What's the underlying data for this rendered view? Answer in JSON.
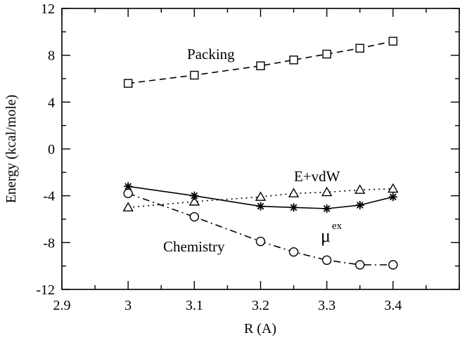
{
  "chart_data": {
    "type": "line",
    "title": "",
    "xlabel": "R (A)",
    "ylabel": "Energy (kcal/mole)",
    "xlim": [
      2.9,
      3.5
    ],
    "ylim": [
      -12,
      12
    ],
    "x_major_ticks": [
      2.9,
      3.0,
      3.1,
      3.2,
      3.3,
      3.4
    ],
    "x_tick_labels": [
      "2.9",
      "3",
      "3.1",
      "3.2",
      "3.3",
      "3.4"
    ],
    "y_major_ticks": [
      -12,
      -8,
      -4,
      0,
      4,
      8,
      12
    ],
    "y_tick_labels": [
      "-12",
      "-8",
      "-4",
      "0",
      "4",
      "8",
      "12"
    ],
    "grid": false,
    "series": [
      {
        "name": "Packing",
        "label": "Packing",
        "marker": "square",
        "line_style": "dashed",
        "x": [
          3.0,
          3.1,
          3.2,
          3.25,
          3.3,
          3.35,
          3.4
        ],
        "y": [
          5.6,
          6.3,
          7.1,
          7.6,
          8.1,
          8.6,
          9.2
        ]
      },
      {
        "name": "E+vdW",
        "label": "E+vdW",
        "marker": "triangle",
        "line_style": "dotted",
        "x": [
          3.0,
          3.1,
          3.2,
          3.25,
          3.3,
          3.35,
          3.4
        ],
        "y": [
          -5.0,
          -4.5,
          -4.1,
          -3.8,
          -3.7,
          -3.5,
          -3.4
        ]
      },
      {
        "name": "mu-ex",
        "label_main": "μ",
        "label_sup": "ex",
        "marker": "asterisk",
        "line_style": "solid",
        "x": [
          3.0,
          3.1,
          3.2,
          3.25,
          3.3,
          3.35,
          3.4
        ],
        "y": [
          -3.2,
          -4.0,
          -4.9,
          -5.0,
          -5.1,
          -4.8,
          -4.1
        ]
      },
      {
        "name": "Chemistry",
        "label": "Chemistry",
        "marker": "circle",
        "line_style": "dashdot",
        "x": [
          3.0,
          3.1,
          3.2,
          3.25,
          3.3,
          3.35,
          3.4
        ],
        "y": [
          -3.8,
          -5.8,
          -7.9,
          -8.8,
          -9.5,
          -9.9,
          -9.9
        ]
      }
    ]
  }
}
